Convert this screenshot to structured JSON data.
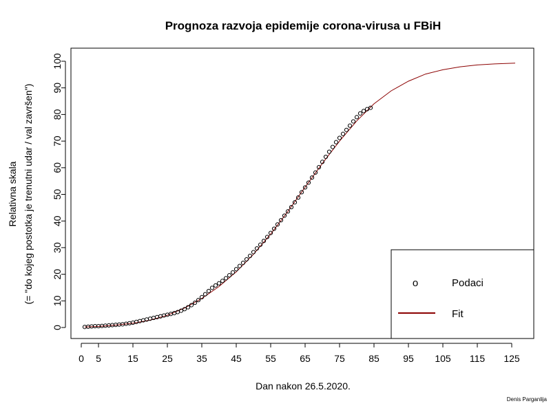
{
  "chart_data": {
    "type": "scatter",
    "title": "Prognoza razvoja epidemije corona-virusa u FBiH",
    "xlabel": "Dan nakon 26.5.2020.",
    "ylabel_line1": "Relativna skala",
    "ylabel_line2": "(= \"do kojeg postotka je trenutni udar / val završen\")",
    "credit": "Denis Parganlija",
    "xlim": [
      0,
      130
    ],
    "ylim": [
      0,
      100
    ],
    "xticks": [
      0,
      5,
      15,
      25,
      35,
      45,
      55,
      65,
      75,
      85,
      95,
      105,
      115,
      125
    ],
    "xtick_labels": [
      "0",
      "5",
      "15",
      "25",
      "35",
      "45",
      "55",
      "65",
      "75",
      "85",
      "95",
      "105",
      "115",
      "125"
    ],
    "yticks": [
      0,
      10,
      20,
      30,
      40,
      50,
      60,
      70,
      80,
      90,
      100
    ],
    "ytick_labels": [
      "0",
      "10",
      "20",
      "30",
      "40",
      "50",
      "60",
      "70",
      "80",
      "90",
      "100"
    ],
    "legend": {
      "position": "bottom-right",
      "items": [
        {
          "symbol": "o",
          "label": "Podaci"
        },
        {
          "label": "Fit",
          "color": "#8b0000"
        }
      ]
    },
    "series": [
      {
        "kind": "points",
        "color": "#000000",
        "x": [
          1,
          2,
          3,
          4,
          5,
          6,
          7,
          8,
          9,
          10,
          11,
          12,
          13,
          14,
          15,
          16,
          17,
          18,
          19,
          20,
          21,
          22,
          23,
          24,
          25,
          26,
          27,
          28,
          29,
          30,
          31,
          32,
          33,
          34,
          35,
          36,
          37,
          38,
          39,
          40,
          41,
          42,
          43,
          44,
          45,
          46,
          47,
          48,
          49,
          50,
          51,
          52,
          53,
          54,
          55,
          56,
          57,
          58,
          59,
          60,
          61,
          62,
          63,
          64,
          65,
          66,
          67,
          68,
          69,
          70,
          71,
          72,
          73,
          74,
          75,
          76,
          77,
          78,
          79,
          80,
          81,
          82,
          83,
          84
        ],
        "y": [
          0.2,
          0.3,
          0.4,
          0.5,
          0.5,
          0.6,
          0.7,
          0.8,
          0.9,
          1.0,
          1.1,
          1.2,
          1.4,
          1.6,
          1.8,
          2.1,
          2.4,
          2.7,
          3.0,
          3.3,
          3.6,
          3.9,
          4.2,
          4.5,
          4.8,
          5.1,
          5.4,
          5.8,
          6.3,
          6.9,
          7.6,
          8.4,
          9.3,
          10.3,
          11.4,
          12.5,
          13.7,
          14.9,
          15.8,
          16.6,
          17.5,
          18.5,
          19.6,
          20.7,
          21.9,
          23.1,
          24.3,
          25.6,
          26.9,
          28.3,
          29.7,
          31.1,
          32.5,
          34.0,
          35.5,
          37.1,
          38.7,
          40.3,
          42.0,
          43.6,
          45.2,
          47.0,
          48.8,
          50.8,
          52.6,
          54.4,
          56.3,
          58.2,
          60.2,
          62.2,
          64.1,
          66.0,
          67.8,
          69.6,
          71.2,
          72.7,
          74.2,
          75.8,
          77.4,
          79.0,
          80.4,
          81.3,
          82.0,
          82.5
        ]
      },
      {
        "kind": "line",
        "color": "#8b0000",
        "x": [
          1,
          5,
          10,
          15,
          20,
          25,
          30,
          35,
          40,
          45,
          50,
          55,
          60,
          65,
          70,
          75,
          80,
          85,
          90,
          95,
          100,
          105,
          110,
          115,
          120,
          126
        ],
        "y": [
          0.2,
          0.4,
          0.9,
          1.6,
          2.8,
          4.6,
          7.3,
          10.9,
          15.4,
          20.9,
          27.5,
          35.1,
          43.6,
          52.7,
          61.6,
          70.0,
          77.6,
          84.0,
          88.9,
          92.5,
          95.2,
          96.8,
          97.9,
          98.6,
          99.0,
          99.3
        ]
      }
    ]
  }
}
